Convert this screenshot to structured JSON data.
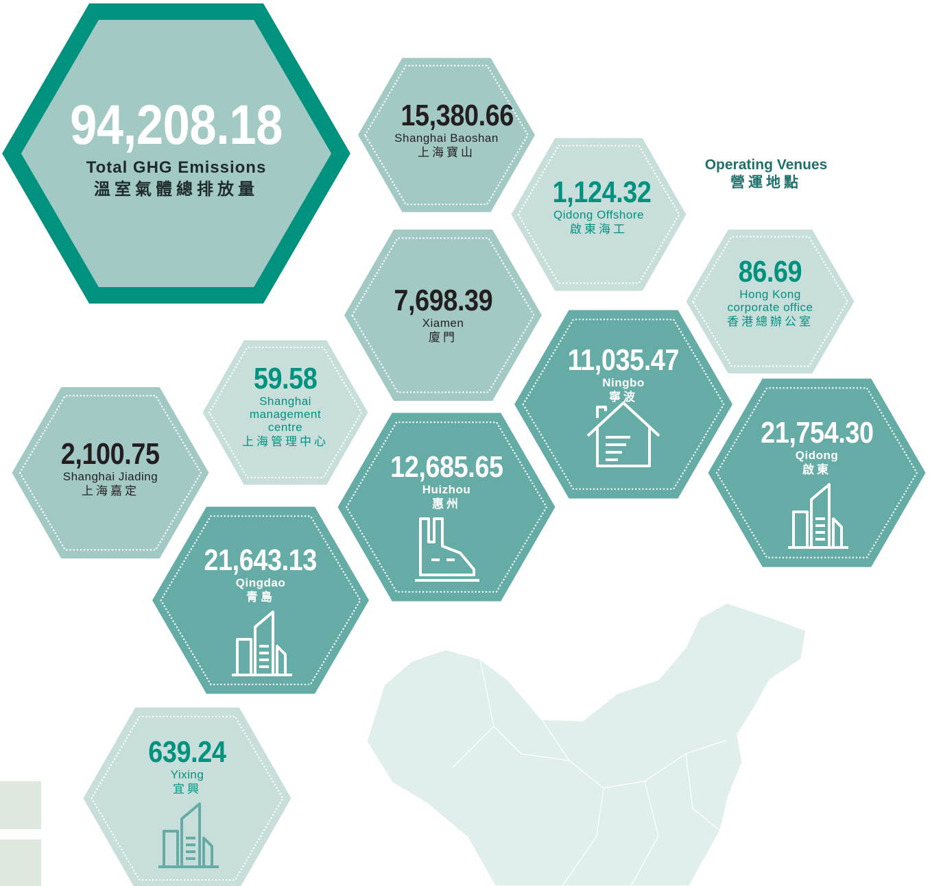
{
  "total": {
    "value": "94,208.18",
    "label_en": "Total GHG Emissions",
    "label_zh": "溫室氣體總排放量"
  },
  "legend": {
    "en": "Operating Venues",
    "zh": "營運地點"
  },
  "venues": [
    {
      "value": "15,380.66",
      "name_en": "Shanghai Baoshan",
      "name_zh": "上海寶山"
    },
    {
      "value": "1,124.32",
      "name_en": "Qidong Offshore",
      "name_zh": "啟東海工"
    },
    {
      "value": "86.69",
      "name_en": "Hong Kong corporate office",
      "name_zh": "香港總辦公室"
    },
    {
      "value": "7,698.39",
      "name_en": "Xiamen",
      "name_zh": "廈門"
    },
    {
      "value": "11,035.47",
      "name_en": "Ningbo",
      "name_zh": "寧波"
    },
    {
      "value": "21,754.30",
      "name_en": "Qidong",
      "name_zh": "啟東"
    },
    {
      "value": "59.58",
      "name_en": "Shanghai management centre",
      "name_zh": "上海管理中心"
    },
    {
      "value": "2,100.75",
      "name_en": "Shanghai Jiading",
      "name_zh": "上海嘉定"
    },
    {
      "value": "12,685.65",
      "name_en": "Huizhou",
      "name_zh": "惠州"
    },
    {
      "value": "21,643.13",
      "name_en": "Qingdao",
      "name_zh": "青島"
    },
    {
      "value": "639.24",
      "name_en": "Yixing",
      "name_zh": "宜興"
    }
  ]
}
